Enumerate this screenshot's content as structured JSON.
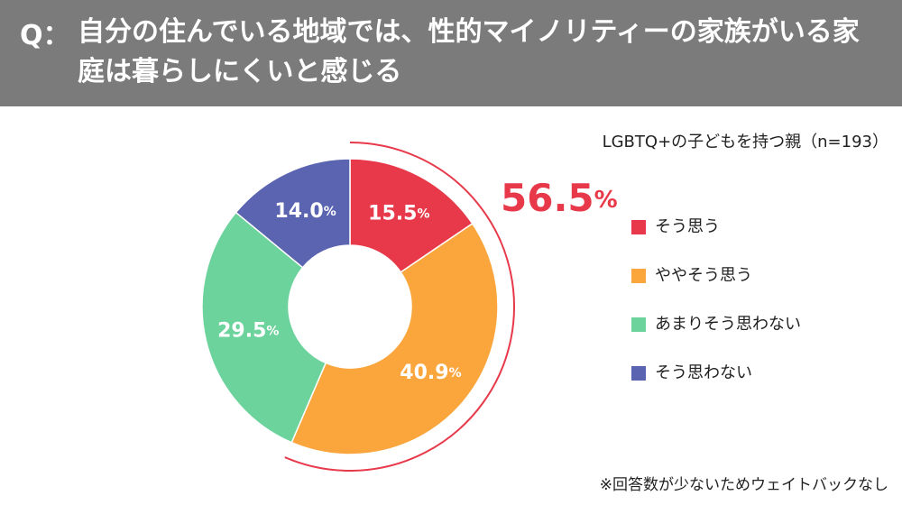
{
  "chart_data": {
    "type": "donut",
    "title_prefix": "Q：",
    "title": "自分の住んでいる地域では、性的マイノリティーの家族がいる家庭は暮らしにくいと感じる",
    "subtitle": "LGBTQ+の子どもを持つ親（n=193）",
    "categories": [
      "そう思う",
      "ややそう思う",
      "あまりそう思わない",
      "そう思わない"
    ],
    "values": [
      15.5,
      40.9,
      29.5,
      14.0
    ],
    "value_labels": [
      "15.5%",
      "40.9%",
      "29.5%",
      "14.0%"
    ],
    "colors": [
      "#e8394a",
      "#fba53d",
      "#6bd39b",
      "#5a64b0"
    ],
    "highlight": {
      "value": 56.5,
      "label": "56.5%",
      "color": "#e8394a"
    },
    "footnote": "※回答数が少ないためウェイトバックなし"
  }
}
